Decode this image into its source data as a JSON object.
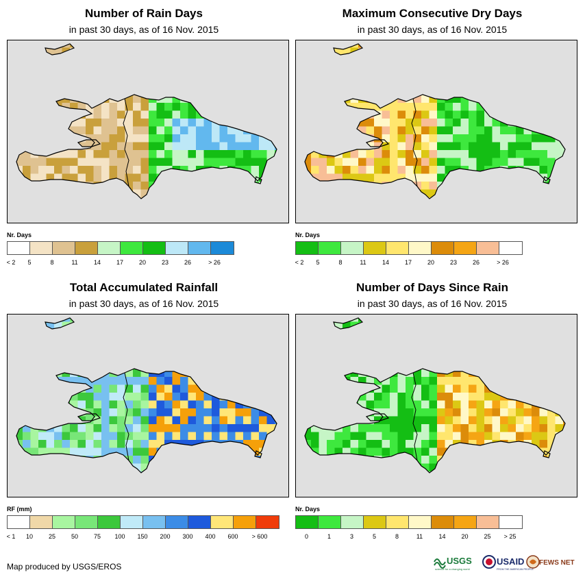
{
  "panels": [
    {
      "title": "Number of Rain Days",
      "subtitle": "in past 30 days, as of 16 Nov. 2015",
      "legend_title": "Nr. Days",
      "legend_colors": [
        "#ffffff",
        "#f4e3c5",
        "#dfc291",
        "#c9a03c",
        "#c6f5c6",
        "#3ee83e",
        "#14be14",
        "#bde8f7",
        "#62b8ee",
        "#1c8ad8"
      ],
      "legend_labels": [
        "< 2",
        "5",
        "8",
        "11",
        "14",
        "17",
        "20",
        "23",
        "26",
        "> 26"
      ],
      "legend_label_mode": "boundary",
      "grid_colors": {
        "Lt": "#f4e3c5",
        "Md": "#dfc291",
        "Dk": "#c9a03c",
        "Pg": "#c6f5c6",
        "Gr": "#3ee83e",
        "Dg": "#14be14",
        "Lb": "#bde8f7",
        "Mb": "#62b8ee"
      },
      "grid": [
        "................................................................................",
        "................................................................................",
        "................................................................................",
        "................................................................................",
        "............................LtMdMd..............................................",
        ".............................................................................",
        "................................................................................",
        "................................................................................"
      ]
    },
    {
      "title": "Maximum Consecutive Dry Days",
      "subtitle": "in past 30 days, as of 16 Nov. 2015",
      "legend_title": "Nr. Days",
      "legend_colors": [
        "#14be14",
        "#3ee83e",
        "#c6f5c6",
        "#dcc814",
        "#ffe66e",
        "#fff8c8",
        "#dc8c0a",
        "#f5a514",
        "#f8be96",
        "#ffffff"
      ],
      "legend_labels": [
        "< 2",
        "5",
        "8",
        "11",
        "14",
        "17",
        "20",
        "23",
        "26",
        "> 26"
      ],
      "legend_label_mode": "boundary"
    },
    {
      "title": "Total Accumulated Rainfall",
      "subtitle": "in past 30 days, as of 16 Nov. 2015",
      "legend_title": "RF (mm)",
      "legend_colors": [
        "#ffffff",
        "#f0d8a8",
        "#a8f5a0",
        "#78e678",
        "#3cc83c",
        "#c0eaf8",
        "#78c0f0",
        "#3c8ce6",
        "#1e5adc",
        "#ffe678",
        "#f5a00a",
        "#f03c0a"
      ],
      "legend_labels": [
        "< 1",
        "10",
        "25",
        "50",
        "75",
        "100",
        "150",
        "200",
        "300",
        "400",
        "600",
        "> 600"
      ],
      "legend_label_mode": "boundary"
    },
    {
      "title": "Number of Days Since Rain",
      "subtitle": "in past 30 days, as of 16 Nov. 2015",
      "legend_title": "Nr. Days",
      "legend_colors": [
        "#14be14",
        "#3ee83e",
        "#c6f5c6",
        "#dcc814",
        "#ffe66e",
        "#fff8c8",
        "#dc8c0a",
        "#f5a514",
        "#f8be96",
        "#ffffff"
      ],
      "legend_labels": [
        "0",
        "1",
        "3",
        "5",
        "8",
        "11",
        "14",
        "20",
        "25",
        "> 25"
      ],
      "legend_label_mode": "center"
    }
  ],
  "footer": "Map produced by USGS/EROS",
  "logos": {
    "usgs": "USGS",
    "usgs_tagline": "science for a changing world",
    "usaid": "USAID",
    "usaid_tagline": "FROM THE AMERICAN PEOPLE",
    "fewsnet": "FEWS NET"
  }
}
